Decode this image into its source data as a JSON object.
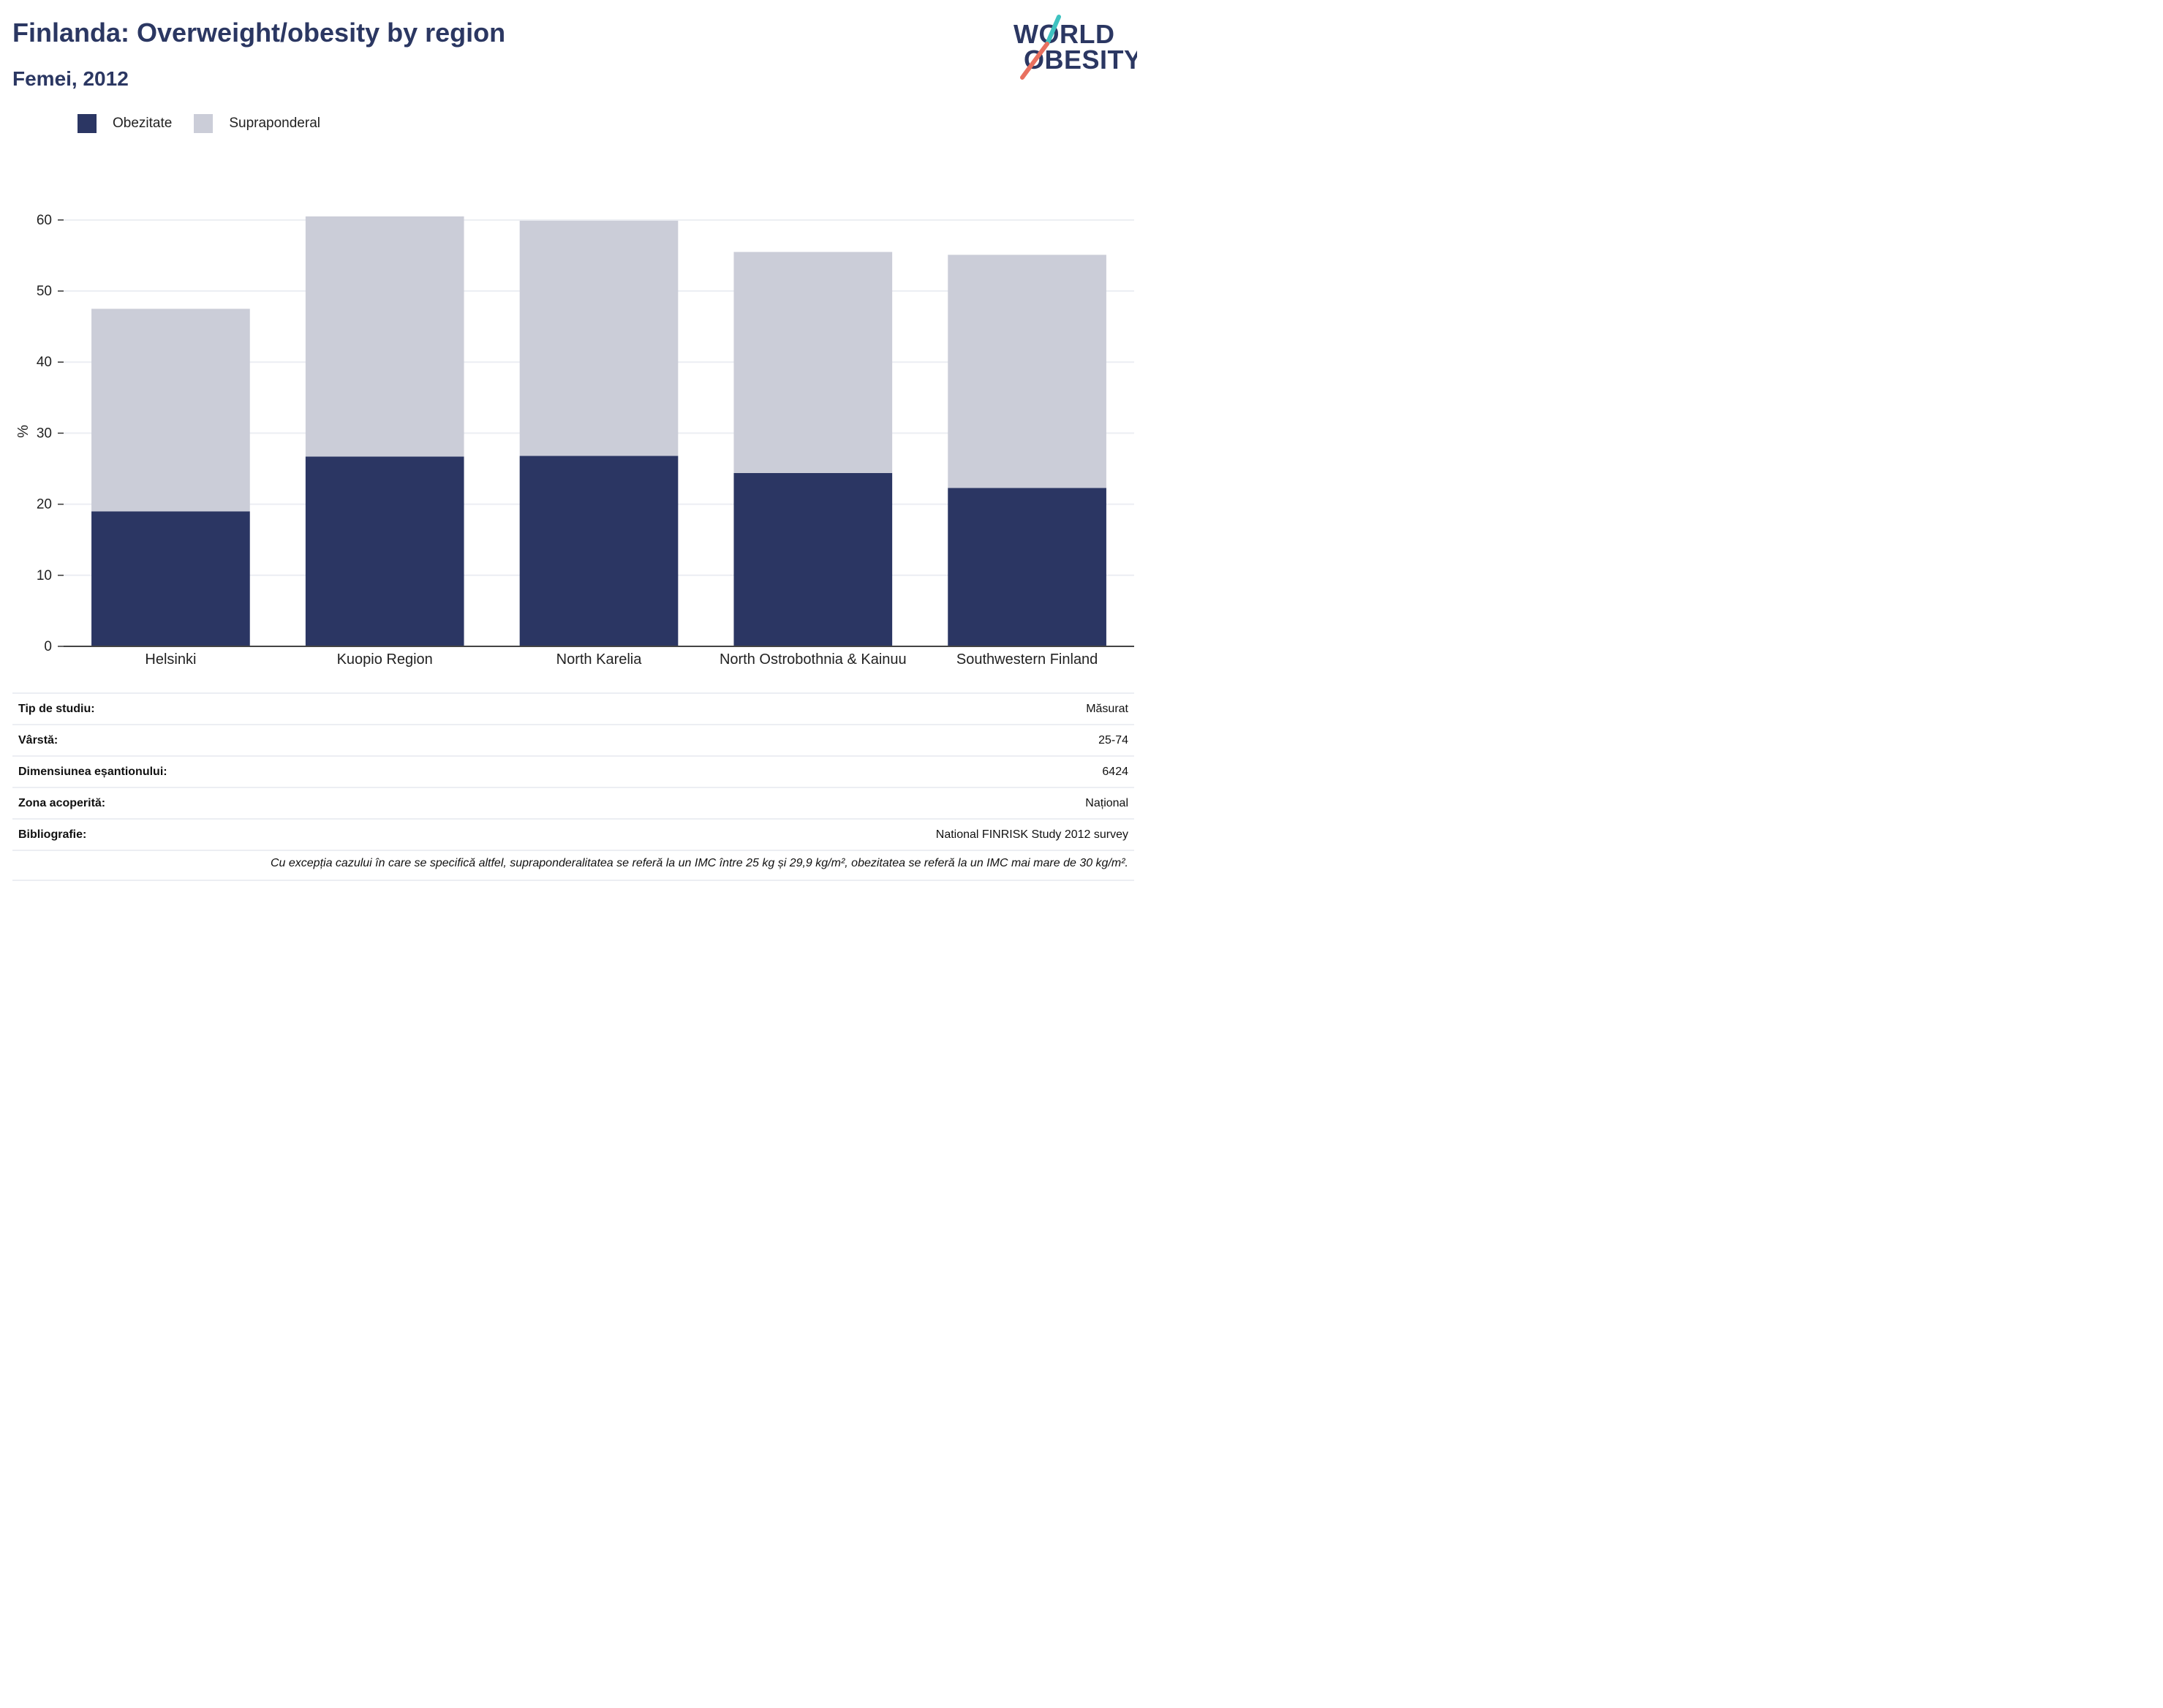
{
  "header": {
    "title": "Finlanda: Overweight/obesity by region",
    "subtitle": "Femei, 2012"
  },
  "logo": {
    "line1": "WORLD",
    "line2": "OBESITY"
  },
  "colors": {
    "obesity": "#2b3663",
    "overweight": "#cbcdd8",
    "brand_teal": "#3ec2c0",
    "brand_coral": "#e8705f"
  },
  "chart_data": {
    "type": "bar",
    "stacked": true,
    "categories": [
      "Helsinki",
      "Kuopio Region",
      "North Karelia",
      "North Ostrobothnia & Kainuu",
      "Southwestern Finland"
    ],
    "series": [
      {
        "name": "Obezitate",
        "values": [
          19.0,
          26.7,
          26.8,
          24.4,
          22.3
        ]
      },
      {
        "name": "Supraponderal",
        "values": [
          28.5,
          33.8,
          33.1,
          31.1,
          32.8
        ]
      }
    ],
    "ylabel": "%",
    "ylim": [
      0,
      60.5
    ],
    "yticks": [
      0,
      10,
      20,
      30,
      40,
      50,
      60
    ],
    "grid": true,
    "legend_position": "top-left"
  },
  "info": [
    {
      "label": "Tip de studiu:",
      "value": "Măsurat"
    },
    {
      "label": "Vârstă:",
      "value": "25-74"
    },
    {
      "label": "Dimensiunea eșantionului:",
      "value": "6424"
    },
    {
      "label": "Zona acoperită:",
      "value": "Național"
    },
    {
      "label": "Bibliografie:",
      "value": "National FINRISK Study 2012 survey"
    }
  ],
  "footnote": "Cu excepția cazului în care se specifică altfel, supraponderalitatea se referă la un IMC între 25 kg și 29,9 kg/m², obezitatea se referă la un IMC mai mare de 30 kg/m²."
}
